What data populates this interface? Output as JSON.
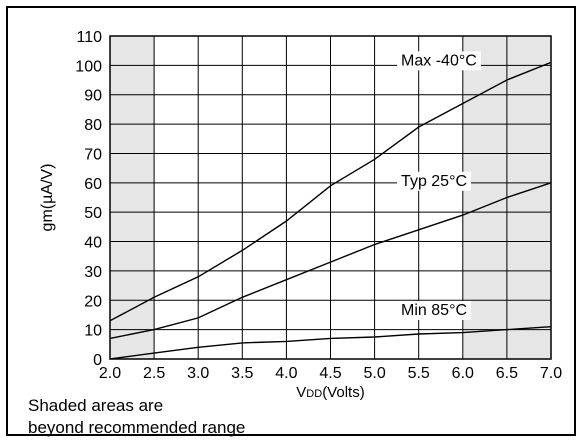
{
  "chart_data": {
    "type": "line",
    "xlabel": "VDD(Volts)",
    "xlabel_main": "V",
    "xlabel_sub": "DD",
    "xlabel_rest": "(Volts)",
    "ylabel": "gm(µA/V)",
    "xlim": [
      2.0,
      7.0
    ],
    "ylim": [
      0,
      110
    ],
    "x_ticks": [
      "2.0",
      "2.5",
      "3.0",
      "3.5",
      "4.0",
      "4.5",
      "5.0",
      "5.5",
      "6.0",
      "6.5",
      "7.0"
    ],
    "y_ticks": [
      "0",
      "10",
      "20",
      "30",
      "40",
      "50",
      "60",
      "70",
      "80",
      "90",
      "100",
      "110"
    ],
    "grid": true,
    "shaded_ranges": [
      [
        2.0,
        2.5
      ],
      [
        6.0,
        7.0
      ]
    ],
    "shade_color": "#e6e6e6",
    "series": [
      {
        "name": "Max -40°C",
        "x": [
          2.0,
          2.5,
          3.0,
          3.5,
          4.0,
          4.5,
          5.0,
          5.5,
          6.0,
          6.5,
          7.0
        ],
        "y": [
          13,
          21,
          28,
          37,
          47,
          59,
          68,
          79,
          87,
          95,
          101
        ]
      },
      {
        "name": "Typ 25°C",
        "x": [
          2.0,
          2.5,
          3.0,
          3.5,
          4.0,
          4.5,
          5.0,
          5.5,
          6.0,
          6.5,
          7.0
        ],
        "y": [
          7,
          10,
          14,
          21,
          27,
          33,
          39,
          44,
          49,
          55,
          60
        ]
      },
      {
        "name": "Min 85°C",
        "x": [
          2.0,
          2.5,
          3.0,
          3.5,
          4.0,
          4.5,
          5.0,
          5.5,
          6.0,
          6.5,
          7.0
        ],
        "y": [
          0,
          2,
          4,
          5.5,
          6,
          7,
          7.5,
          8.5,
          9,
          10,
          11
        ]
      }
    ]
  },
  "note_line1": "Shaded areas are",
  "note_line2": "beyond recommended range"
}
